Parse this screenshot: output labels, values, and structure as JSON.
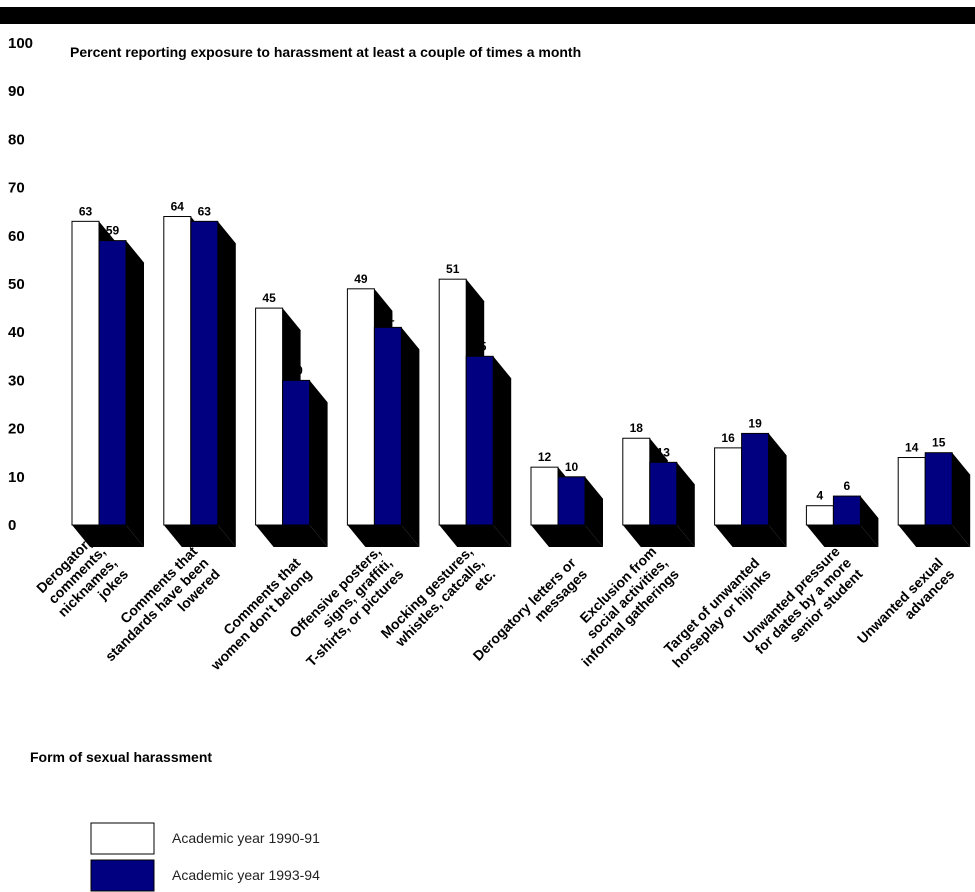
{
  "chart_data": {
    "type": "bar",
    "title": "Percent reporting exposure to harassment at least a couple of times a month",
    "xlabel": "Form of sexual harassment",
    "ylabel": "",
    "ylim": [
      0,
      100
    ],
    "yticks": [
      "0",
      "10",
      "20",
      "30",
      "40",
      "50",
      "60",
      "70",
      "80",
      "90",
      "100"
    ],
    "categories": [
      [
        "Derogatory",
        "comments,",
        "nicknames,",
        "jokes"
      ],
      [
        "Comments that",
        "standards have been",
        "lowered"
      ],
      [
        "Comments that",
        "women don't belong"
      ],
      [
        "Offensive posters,",
        "signs, graffiti,",
        "T-shirts, or pictures"
      ],
      [
        "Mocking gestures,",
        "whistles, catcalls,",
        "etc."
      ],
      [
        "Derogatory letters or",
        "messages"
      ],
      [
        "Exclusion from",
        "social activities,",
        "informal gatherings"
      ],
      [
        "Target of unwanted",
        "horseplay or hijinks"
      ],
      [
        "Unwanted pressure",
        "for dates by a more",
        "senior student"
      ],
      [
        "Unwanted sexual",
        "advances"
      ]
    ],
    "series": [
      {
        "name": "Academic year 1990-91",
        "color": "#ffffff",
        "values": [
          63,
          64,
          45,
          49,
          51,
          12,
          18,
          16,
          4,
          14
        ]
      },
      {
        "name": "Academic year 1993-94",
        "color": "#000080",
        "values": [
          59,
          63,
          30,
          41,
          35,
          10,
          13,
          19,
          6,
          15
        ]
      }
    ],
    "grid": false,
    "legend": "bottom-left",
    "shadow_color": "#000000"
  }
}
